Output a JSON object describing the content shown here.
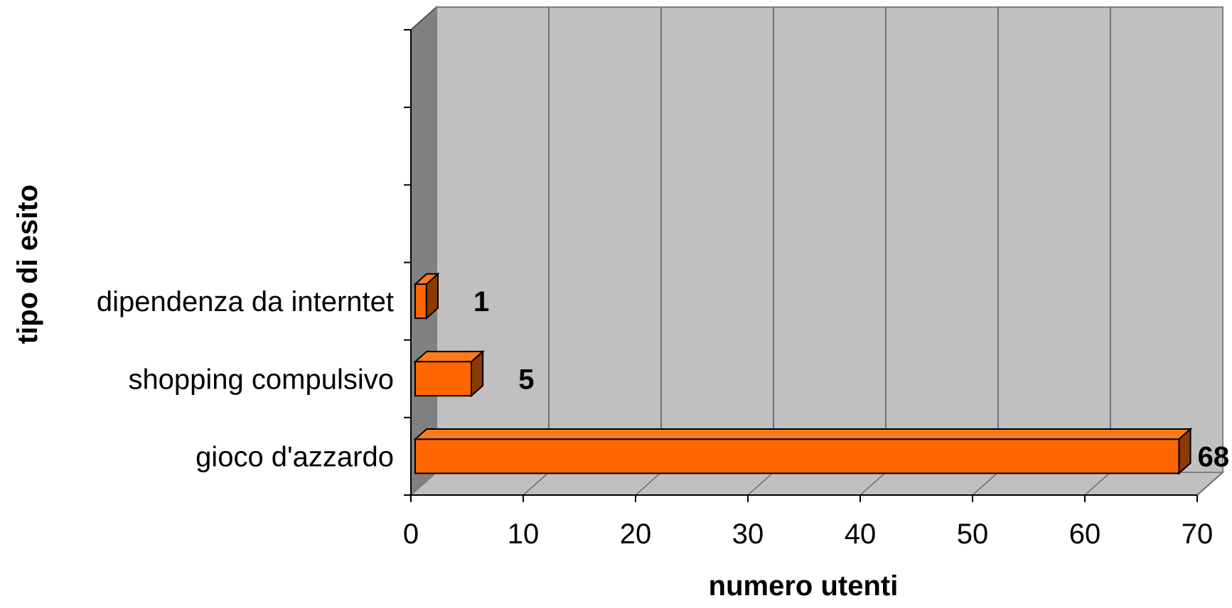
{
  "chart_data": {
    "type": "bar",
    "orientation": "horizontal",
    "style": "3d",
    "categories": [
      "gioco d'azzardo",
      "shopping compulsivo",
      "dipendenza da interntet"
    ],
    "values": [
      68,
      5,
      1
    ],
    "data_labels": [
      "68",
      "5",
      "1"
    ],
    "xlabel": "numero utenti",
    "ylabel": "tipo di esito",
    "xlim": [
      0,
      70
    ],
    "xticks": [
      "0",
      "10",
      "20",
      "30",
      "40",
      "50",
      "60",
      "70"
    ],
    "category_slots": 6,
    "grid": true,
    "legend": "none",
    "colors": {
      "bar_front": "#ff6600",
      "bar_top": "#ff7a1a",
      "bar_side": "#8b3a00",
      "back_wall": "#c0c0c0",
      "side_wall": "#808080",
      "floor": "#c0c0c0",
      "gridline": "#555555"
    }
  }
}
